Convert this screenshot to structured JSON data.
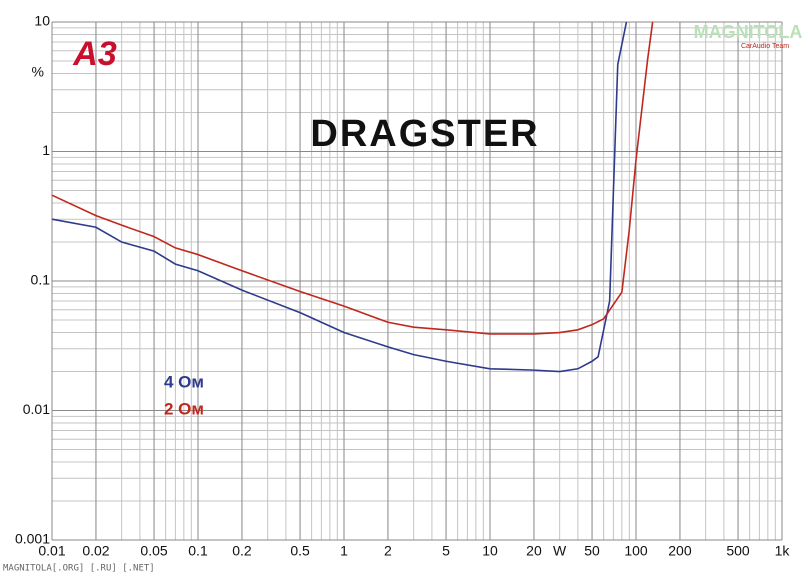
{
  "chart_data": {
    "type": "line",
    "title": "DRAGSTER",
    "logo": "A3",
    "watermark": "MAGNITOLA",
    "watermark_sub": "CarAudio Team",
    "footer": "MAGNITOLA[.ORG] [.RU] [.NET]",
    "x_unit": "W",
    "y_unit": "%",
    "log_x": true,
    "log_y": true,
    "grid": true,
    "minor_grid": true,
    "xlim": [
      0.01,
      1000
    ],
    "ylim": [
      0.001,
      10
    ],
    "xticks": [
      0.01,
      0.02,
      0.05,
      0.1,
      0.2,
      0.5,
      1,
      2,
      5,
      10,
      20,
      50,
      100,
      200,
      500,
      {
        "value": 1000,
        "label": "1k"
      }
    ],
    "yticks": [
      0.001,
      0.01,
      0.1,
      1,
      10
    ],
    "series": [
      {
        "name": "4 Ом",
        "color": "#2e3a8c",
        "x": [
          0.01,
          0.02,
          0.03,
          0.05,
          0.07,
          0.1,
          0.2,
          0.5,
          1,
          2,
          3,
          5,
          10,
          20,
          30,
          40,
          50,
          55,
          66,
          75,
          86
        ],
        "values": [
          0.3,
          0.26,
          0.2,
          0.17,
          0.135,
          0.12,
          0.085,
          0.057,
          0.04,
          0.031,
          0.027,
          0.024,
          0.021,
          0.0205,
          0.02,
          0.021,
          0.024,
          0.026,
          0.07,
          4.7,
          10
        ]
      },
      {
        "name": "2 Ом",
        "color": "#c0281e",
        "x": [
          0.01,
          0.02,
          0.03,
          0.05,
          0.07,
          0.1,
          0.2,
          0.5,
          1,
          2,
          3,
          5,
          10,
          20,
          30,
          40,
          50,
          60,
          80,
          90,
          100,
          120,
          130
        ],
        "values": [
          0.46,
          0.32,
          0.27,
          0.22,
          0.18,
          0.16,
          0.12,
          0.083,
          0.064,
          0.048,
          0.044,
          0.042,
          0.039,
          0.039,
          0.04,
          0.042,
          0.046,
          0.051,
          0.082,
          0.25,
          0.86,
          5.1,
          10
        ]
      }
    ]
  }
}
